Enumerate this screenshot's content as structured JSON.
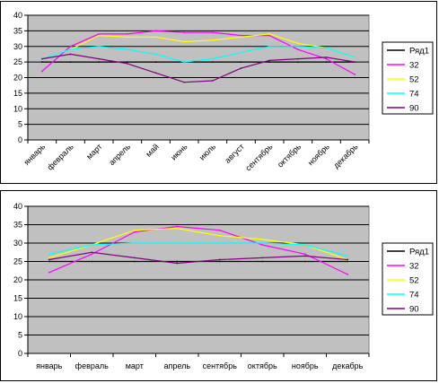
{
  "chart_data": [
    {
      "type": "line",
      "categories": [
        "январь",
        "февраль",
        "март",
        "апрель",
        "май",
        "июнь",
        "июль",
        "август",
        "сентябрь",
        "октябрь",
        "ноябрь",
        "декабрь"
      ],
      "ylim": [
        0,
        40
      ],
      "yticks": [
        0,
        5,
        10,
        15,
        20,
        25,
        30,
        35,
        40
      ],
      "grid": true,
      "background": "#c0c0c0",
      "legend": "right",
      "series": [
        {
          "name": "Ряд1",
          "color": "#000000",
          "values": [
            25,
            25,
            25,
            25,
            25,
            25,
            25,
            25,
            25,
            25,
            25,
            25
          ]
        },
        {
          "name": "32",
          "color": "#ff00ff",
          "values": [
            22,
            30,
            34,
            34,
            35,
            34.5,
            34.5,
            33.5,
            33.5,
            29,
            26,
            21
          ]
        },
        {
          "name": "52",
          "color": "#ffff00",
          "values": [
            26,
            29,
            33.5,
            33,
            33,
            31.5,
            32,
            33,
            34,
            31,
            29.5,
            26.5
          ]
        },
        {
          "name": "74",
          "color": "#00ffff",
          "values": [
            26,
            29,
            30,
            29,
            27.5,
            25,
            26,
            28,
            30,
            30,
            29.5,
            26.5
          ]
        },
        {
          "name": "90",
          "color": "#800080",
          "values": [
            26,
            27.5,
            26,
            24.5,
            21.5,
            18.5,
            19,
            23,
            25.5,
            26,
            26.5,
            25
          ]
        }
      ]
    },
    {
      "type": "line",
      "categories": [
        "январь",
        "февраль",
        "март",
        "апрель",
        "сентябрь",
        "октябрь",
        "ноябрь",
        "декабрь"
      ],
      "ylim": [
        0,
        40
      ],
      "yticks": [
        0,
        5,
        10,
        15,
        20,
        25,
        30,
        35,
        40
      ],
      "grid": true,
      "background": "#c0c0c0",
      "legend": "right",
      "series": [
        {
          "name": "Ряд1",
          "color": "#000000",
          "values": [
            25,
            25,
            25,
            25,
            25,
            25,
            25,
            25
          ]
        },
        {
          "name": "32",
          "color": "#ff00ff",
          "values": [
            22,
            27,
            33,
            34.5,
            33.5,
            29.5,
            27,
            21.5
          ]
        },
        {
          "name": "52",
          "color": "#ffff00",
          "values": [
            26,
            29.5,
            33.5,
            34,
            32,
            31,
            29.5,
            25.5
          ]
        },
        {
          "name": "74",
          "color": "#00ffff",
          "values": [
            27,
            29.5,
            30,
            30,
            30,
            30,
            29.5,
            26.5
          ]
        },
        {
          "name": "90",
          "color": "#800080",
          "values": [
            25.5,
            27.5,
            26,
            24.5,
            25.5,
            26,
            26.5,
            25.5
          ]
        }
      ]
    }
  ]
}
